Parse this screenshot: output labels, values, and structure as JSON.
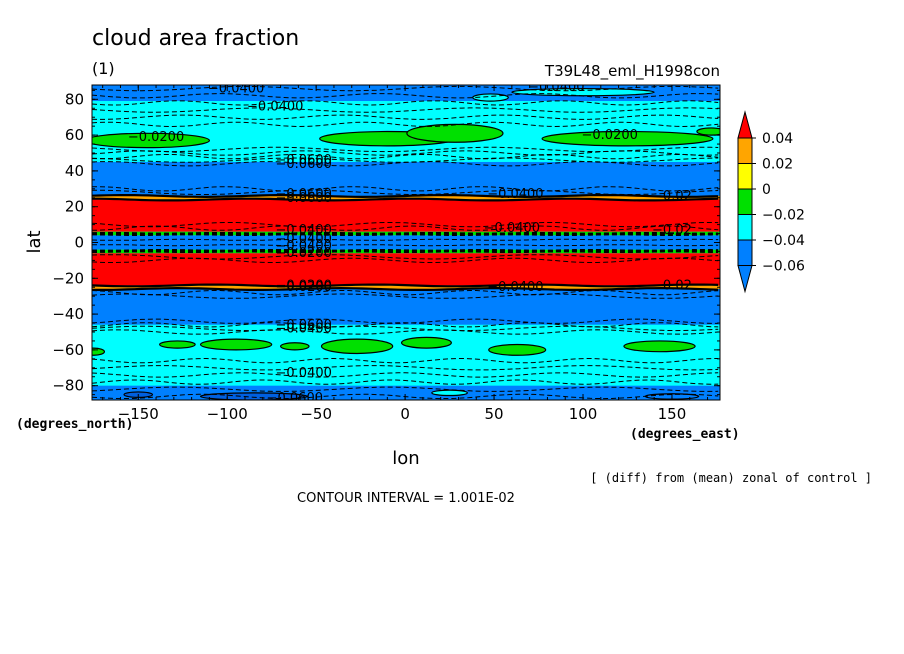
{
  "chart_data": {
    "type": "heatmap",
    "title": "cloud area fraction",
    "subtitle": "(1)",
    "experiment_label": "T39L48_eml_H1998con",
    "xlabel": "lon",
    "ylabel": "lat",
    "x_units": "(degrees_east)",
    "y_units": "(degrees_north)",
    "note": "[ (diff) from (mean) zonal of control ]",
    "contour_interval": "CONTOUR INTERVAL = 1.001E-02",
    "xlim": [
      -180,
      180
    ],
    "ylim": [
      -90,
      90
    ],
    "x_ticks": [
      -150,
      -100,
      -50,
      0,
      50,
      100,
      150
    ],
    "y_ticks": [
      -80,
      -60,
      -40,
      -20,
      0,
      20,
      40,
      60,
      80
    ],
    "x_tick_labels": [
      "−150",
      "−100",
      "−50",
      "0",
      "50",
      "100",
      "150"
    ],
    "y_tick_labels": [
      "−80",
      "−60",
      "−40",
      "−20",
      "0",
      "20",
      "40",
      "60",
      "80"
    ],
    "colorbar": {
      "levels": [
        0.04,
        0.02,
        0,
        -0.02,
        -0.04,
        -0.06
      ],
      "labels": [
        "0.04",
        "0.02",
        "0",
        "−0.02",
        "−0.04",
        "−0.06"
      ],
      "colors": [
        "#ff0000",
        "#ffa500",
        "#ffff00",
        "#00e000",
        "#00ffff",
        "#0080ff"
      ]
    },
    "zonal_bands": [
      {
        "lat_from": 79,
        "lat_to": 88,
        "color": "#0080ff"
      },
      {
        "lat_from": 63,
        "lat_to": 79,
        "color": "#00ffff"
      },
      {
        "lat_from": 53,
        "lat_to": 63,
        "color": "#00ffff"
      },
      {
        "lat_from": 45,
        "lat_to": 53,
        "color": "#00ffff"
      },
      {
        "lat_from": 26,
        "lat_to": 45,
        "color": "#0080ff"
      },
      {
        "lat_from": 24,
        "lat_to": 26,
        "color": "#ffa500"
      },
      {
        "lat_from": 6,
        "lat_to": 24,
        "color": "#ff0000"
      },
      {
        "lat_from": 4,
        "lat_to": 6,
        "color": "#00e000"
      },
      {
        "lat_from": -4,
        "lat_to": 4,
        "color": "#0080ff"
      },
      {
        "lat_from": -6,
        "lat_to": -4,
        "color": "#00e000"
      },
      {
        "lat_from": -24,
        "lat_to": -6,
        "color": "#ff0000"
      },
      {
        "lat_from": -26,
        "lat_to": -24,
        "color": "#ffa500"
      },
      {
        "lat_from": -46,
        "lat_to": -26,
        "color": "#0080ff"
      },
      {
        "lat_from": -80,
        "lat_to": -46,
        "color": "#00ffff"
      },
      {
        "lat_from": -88,
        "lat_to": -80,
        "color": "#0080ff"
      }
    ],
    "patches": [
      {
        "lon": -145,
        "lat": 57,
        "rlon": 35,
        "rlat": 4,
        "color": "#00e000"
      },
      {
        "lon": -10,
        "lat": 58,
        "rlon": 38,
        "rlat": 4,
        "color": "#00e000"
      },
      {
        "lon": 28,
        "lat": 61,
        "rlon": 27,
        "rlat": 5,
        "color": "#00e000"
      },
      {
        "lon": 125,
        "lat": 58,
        "rlon": 48,
        "rlat": 4,
        "color": "#00e000"
      },
      {
        "lon": 172,
        "lat": 62,
        "rlon": 8,
        "rlat": 2,
        "color": "#00e000"
      },
      {
        "lon": 48,
        "lat": 81,
        "rlon": 10,
        "rlat": 2,
        "color": "#00ffff"
      },
      {
        "lon": 100,
        "lat": 84,
        "rlon": 40,
        "rlat": 2,
        "color": "#00ffff"
      },
      {
        "lon": -128,
        "lat": -57,
        "rlon": 10,
        "rlat": 2,
        "color": "#00e000"
      },
      {
        "lon": -95,
        "lat": -57,
        "rlon": 20,
        "rlat": 3,
        "color": "#00e000"
      },
      {
        "lon": -62,
        "lat": -58,
        "rlon": 8,
        "rlat": 2,
        "color": "#00e000"
      },
      {
        "lon": -27,
        "lat": -58,
        "rlon": 20,
        "rlat": 4,
        "color": "#00e000"
      },
      {
        "lon": 12,
        "lat": -56,
        "rlon": 14,
        "rlat": 3,
        "color": "#00e000"
      },
      {
        "lon": 63,
        "lat": -60,
        "rlon": 16,
        "rlat": 3,
        "color": "#00e000"
      },
      {
        "lon": 143,
        "lat": -58,
        "rlon": 20,
        "rlat": 3,
        "color": "#00e000"
      },
      {
        "lon": -175,
        "lat": -61,
        "rlon": 6,
        "rlat": 2,
        "color": "#00e000"
      },
      {
        "lon": -150,
        "lat": -85,
        "rlon": 8,
        "rlat": 1.5,
        "color": "#0060e0"
      },
      {
        "lon": -85,
        "lat": -86,
        "rlon": 30,
        "rlat": 2,
        "color": "#0060e0"
      },
      {
        "lon": 25,
        "lat": -84,
        "rlon": 10,
        "rlat": 1.5,
        "color": "#00ffff"
      },
      {
        "lon": 150,
        "lat": -86,
        "rlon": 15,
        "rlat": 1.5,
        "color": "#0080ff"
      }
    ],
    "contour_labels": [
      {
        "lon": -95,
        "lat": 86,
        "text": "−0.0400"
      },
      {
        "lon": -73,
        "lat": 76,
        "text": "−0.0400"
      },
      {
        "lon": 85,
        "lat": 87,
        "text": "−0.0400"
      },
      {
        "lon": -140,
        "lat": 59,
        "text": "−0.0200"
      },
      {
        "lon": 115,
        "lat": 60,
        "text": "−0.0200"
      },
      {
        "lon": -57,
        "lat": 46,
        "text": "−0.0600"
      },
      {
        "lon": -57,
        "lat": 44,
        "text": "−0.0600"
      },
      {
        "lon": -57,
        "lat": 27,
        "text": "−0.0600"
      },
      {
        "lon": -57,
        "lat": 25,
        "text": "−0.0600"
      },
      {
        "lon": 62,
        "lat": 27,
        "text": "−0.0400"
      },
      {
        "lon": 150,
        "lat": 26,
        "text": "−0.02"
      },
      {
        "lon": -57,
        "lat": 7,
        "text": "−0.0400"
      },
      {
        "lon": 60,
        "lat": 8,
        "text": "−0.0400"
      },
      {
        "lon": 150,
        "lat": 7,
        "text": "−0.02"
      },
      {
        "lon": -57,
        "lat": 2,
        "text": "−0.0400"
      },
      {
        "lon": -57,
        "lat": -2,
        "text": "−0.0400"
      },
      {
        "lon": -57,
        "lat": -6,
        "text": "−0.0200"
      },
      {
        "lon": -57,
        "lat": -24,
        "text": "−0.0200"
      },
      {
        "lon": -57,
        "lat": -25,
        "text": "−0.0200"
      },
      {
        "lon": 62,
        "lat": -25,
        "text": "−0.0400"
      },
      {
        "lon": 150,
        "lat": -24,
        "text": "−0.02"
      },
      {
        "lon": -57,
        "lat": -46,
        "text": "−0.0600"
      },
      {
        "lon": -57,
        "lat": -48,
        "text": "−0.0400"
      },
      {
        "lon": -57,
        "lat": -73,
        "text": "−0.0400"
      },
      {
        "lon": -62,
        "lat": -87,
        "text": "−0.0600"
      }
    ]
  }
}
